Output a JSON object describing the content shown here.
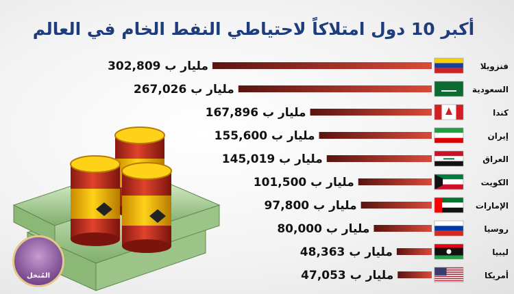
{
  "title": "أكبر 10 دول امتلاكاً لاحتياطي النفط الخام في العالم",
  "logo_text": "المُنخل",
  "colors": {
    "bar_dark": "#5a1410",
    "bar_light": "#d94a3a",
    "title": "#1f3d7a"
  },
  "chart_data": {
    "type": "bar",
    "orientation": "horizontal",
    "categories": [
      "فنزويلا",
      "السعودية",
      "كندا",
      "إيران",
      "العراق",
      "الكويت",
      "الإمارات",
      "روسيا",
      "ليبيا",
      "أمريكا"
    ],
    "flags": [
      "venezuela-flag-icon",
      "saudi-flag-icon",
      "canada-flag-icon",
      "iran-flag-icon",
      "iraq-flag-icon",
      "kuwait-flag-icon",
      "uae-flag-icon",
      "russia-flag-icon",
      "libya-flag-icon",
      "usa-flag-icon"
    ],
    "values": [
      302809,
      267026,
      167896,
      155600,
      145019,
      101500,
      97800,
      80000,
      48363,
      47053
    ],
    "value_labels": [
      "302,809 مليار ب",
      "267,026 مليار ب",
      "167,896 مليار ب",
      "155,600 مليار ب",
      "145,019 مليار ب",
      "101,500 مليار ب",
      "97,800 مليار ب",
      "80,000 مليار ب",
      "48,363 مليار ب",
      "47,053 مليار ب"
    ],
    "title": "أكبر 10 دول امتلاكاً لاحتياطي النفط الخام في العالم",
    "xlabel": "",
    "ylabel": ""
  }
}
